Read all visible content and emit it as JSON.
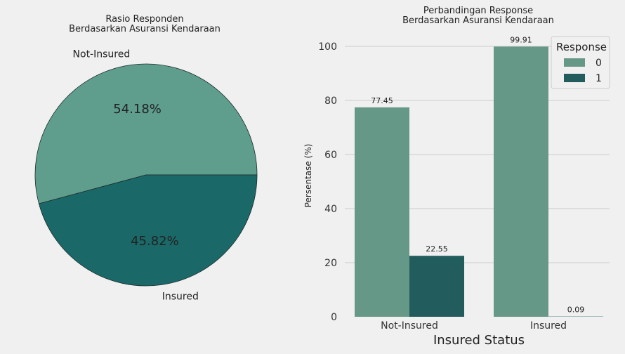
{
  "chart_data": [
    {
      "type": "pie",
      "title": "Rasio Responden\nBerdasarkan Asuransi Kendaraan",
      "labels": [
        "Not-Insured",
        "Insured"
      ],
      "values": [
        54.18,
        45.82
      ],
      "value_labels": [
        "54.18%",
        "45.82%"
      ],
      "colors": [
        "#5f9e8d",
        "#1b6868"
      ]
    },
    {
      "type": "bar",
      "title": "Perbandingan Response\nBerdasarkan Asuransi Kendaraan",
      "xlabel": "Insured Status",
      "ylabel": "Persentase (%)",
      "categories": [
        "Not-Insured",
        "Insured"
      ],
      "ylim": [
        0,
        100
      ],
      "yticks": [
        0,
        20,
        40,
        60,
        80,
        100
      ],
      "grid": true,
      "legend": {
        "title": "Response",
        "position": "top-right"
      },
      "series": [
        {
          "name": "0",
          "values": [
            77.45,
            99.91
          ],
          "color": "#669887"
        },
        {
          "name": "1",
          "values": [
            22.55,
            0.09
          ],
          "color": "#235c5c"
        }
      ]
    }
  ]
}
